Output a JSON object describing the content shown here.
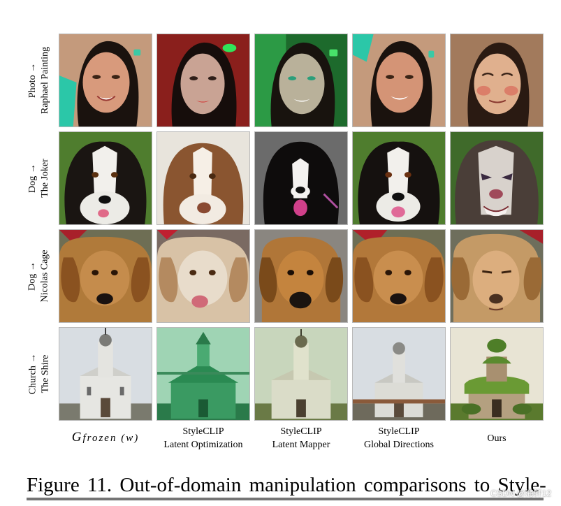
{
  "rows": [
    {
      "source": "Photo",
      "arrow": "→",
      "target": "Raphael Painting"
    },
    {
      "source": "Dog",
      "arrow": "→",
      "target": "The Joker"
    },
    {
      "source": "Dog",
      "arrow": "→",
      "target": "Nicolas Cage"
    },
    {
      "source": "Church",
      "arrow": "→",
      "target": "The Shire"
    }
  ],
  "columns": [
    {
      "line1": "G",
      "line2": "frozen (w)"
    },
    {
      "line1": "StyleCLIP",
      "line2": "Latent Optimization"
    },
    {
      "line1": "StyleCLIP",
      "line2": "Latent Mapper"
    },
    {
      "line1": "StyleCLIP",
      "line2": "Global Directions"
    },
    {
      "line1": "Ours",
      "line2": ""
    }
  ],
  "caption": "Figure 11.  Out-of-domain manipulation comparisons to Style-",
  "watermark": "CSDN @海轩12"
}
